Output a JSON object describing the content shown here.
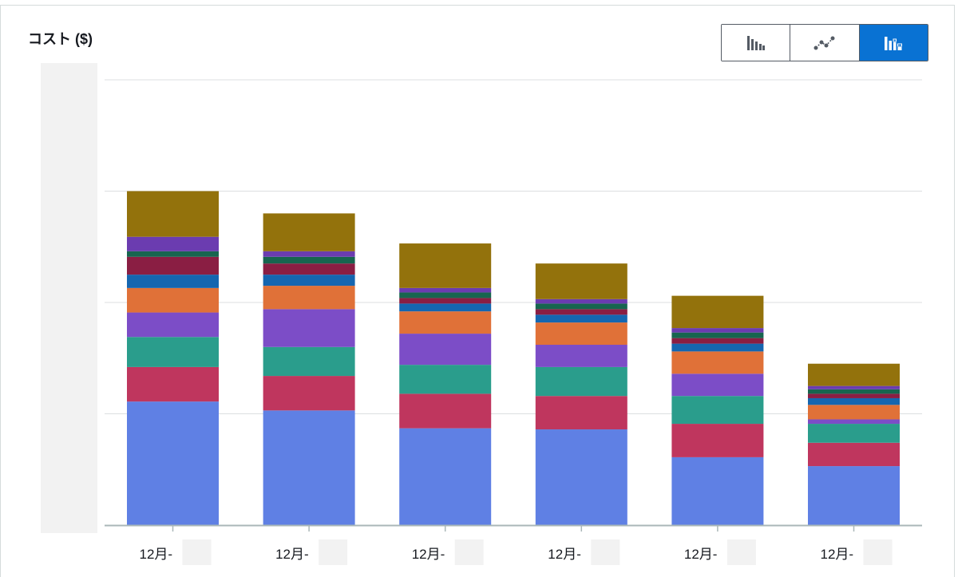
{
  "chart_title": "コスト ($)",
  "view_toggle": {
    "options": [
      {
        "icon": "grouped-bar-chart-icon",
        "active": false
      },
      {
        "icon": "line-chart-icon",
        "active": false
      },
      {
        "icon": "stacked-bar-chart-icon",
        "active": true
      }
    ],
    "active_color": "#0972d3"
  },
  "chart_data": {
    "type": "bar",
    "stacked": true,
    "title": "コスト ($)",
    "categories": [
      "12月-",
      "12月-",
      "12月-",
      "12月-",
      "12月-",
      "12月-"
    ],
    "ylim": [
      0,
      400
    ],
    "grid": true,
    "gridlines": [
      0,
      100,
      200,
      300,
      400
    ],
    "y_tick_labels_visible": false,
    "series": [
      {
        "color": "#5f80e4",
        "values": [
          111,
          103,
          87,
          86,
          61,
          53
        ]
      },
      {
        "color": "#bf365e",
        "values": [
          31,
          31,
          31,
          30,
          30,
          21
        ]
      },
      {
        "color": "#2a9d8c",
        "values": [
          27,
          26,
          26,
          26,
          25,
          17
        ]
      },
      {
        "color": "#7c4dc7",
        "values": [
          22,
          34,
          28,
          20,
          20,
          4
        ]
      },
      {
        "color": "#e07138",
        "values": [
          22,
          21,
          20,
          20,
          20,
          13
        ]
      },
      {
        "color": "#1566b0",
        "values": [
          12,
          10,
          7,
          7,
          7,
          6
        ]
      },
      {
        "color": "#8a1e43",
        "values": [
          16,
          10,
          5,
          5,
          5,
          4
        ]
      },
      {
        "color": "#17654f",
        "values": [
          5,
          6,
          5,
          5,
          5,
          4
        ]
      },
      {
        "color": "#6b3cb0",
        "values": [
          13,
          5,
          4,
          4,
          4,
          3
        ]
      },
      {
        "color": "#93720c",
        "values": [
          41,
          34,
          40,
          32,
          29,
          20
        ]
      }
    ]
  }
}
